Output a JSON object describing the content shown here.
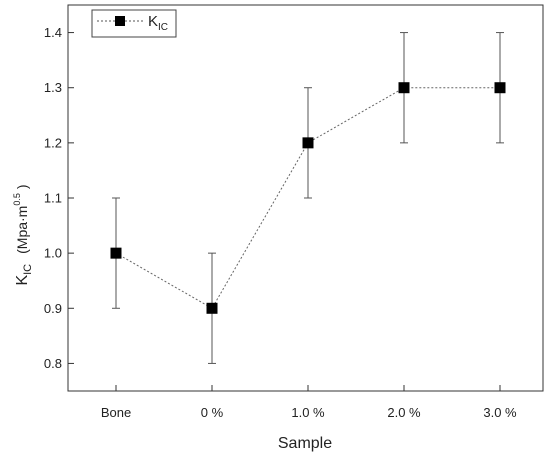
{
  "chart_data": {
    "type": "line",
    "title": "",
    "xlabel": "Sample",
    "ylabel": {
      "main": "K",
      "sub": "IC",
      "unit_prefix": "(Mpa·m",
      "unit_exp": "0.5",
      "unit_suffix": ")"
    },
    "categories": [
      "Bone",
      "0 %",
      "1.0 %",
      "2.0 %",
      "3.0 %"
    ],
    "ylim": [
      0.75,
      1.45
    ],
    "yticks": [
      0.8,
      0.9,
      1.0,
      1.1,
      1.2,
      1.3,
      1.4
    ],
    "ytick_labels": [
      "0.8",
      "0.9",
      "1.0",
      "1.1",
      "1.2",
      "1.3",
      "1.4"
    ],
    "grid": false,
    "legend_position": "top-left",
    "series": [
      {
        "name": "K_IC",
        "legend_main": "K",
        "legend_sub": "IC",
        "values": [
          1.0,
          0.9,
          1.2,
          1.3,
          1.3
        ],
        "error": [
          0.1,
          0.1,
          0.1,
          0.1,
          0.1
        ],
        "marker": "square",
        "line_style": "dotted",
        "color": "#000000"
      }
    ]
  }
}
